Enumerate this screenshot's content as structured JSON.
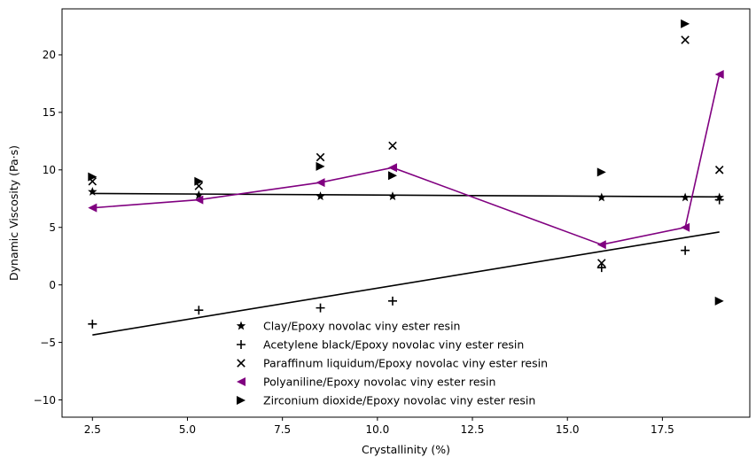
{
  "chart_data": {
    "type": "scatter",
    "title": "",
    "xlabel": "Crystallinity (%)",
    "ylabel": "Dynamic Viscosity (Pa·s)",
    "xlim": [
      1.7,
      19.8
    ],
    "ylim": [
      -11.5,
      24.0
    ],
    "xticks": [
      2.5,
      5.0,
      7.5,
      10.0,
      12.5,
      15.0,
      17.5
    ],
    "xtick_labels": [
      "2.5",
      "5.0",
      "7.5",
      "10.0",
      "12.5",
      "15.0",
      "17.5"
    ],
    "yticks": [
      -10,
      -5,
      0,
      5,
      10,
      15,
      20
    ],
    "ytick_labels": [
      "−10",
      "−5",
      "0",
      "5",
      "10",
      "15",
      "20"
    ],
    "grid": false,
    "legend_position": "bottom-center",
    "series": [
      {
        "name": "Clay/Epoxy novolac viny ester resin",
        "marker": "star",
        "color": "#000000",
        "x": [
          2.5,
          5.3,
          8.5,
          10.4,
          15.9,
          18.1,
          19.0
        ],
        "y": [
          8.1,
          7.8,
          7.7,
          7.7,
          7.6,
          7.6,
          7.6
        ]
      },
      {
        "name": "Acetylene black/Epoxy novolac viny ester resin",
        "marker": "plus",
        "color": "#000000",
        "x": [
          2.5,
          5.3,
          8.5,
          10.4,
          15.9,
          18.1,
          19.0
        ],
        "y": [
          -3.4,
          -2.2,
          -2.0,
          -1.4,
          1.5,
          3.0,
          7.4
        ]
      },
      {
        "name": "Paraffinum liquidum/Epoxy novolac viny ester resin",
        "marker": "x",
        "color": "#000000",
        "x": [
          2.5,
          5.3,
          8.5,
          10.4,
          15.9,
          18.1,
          19.0
        ],
        "y": [
          9.0,
          8.6,
          11.1,
          12.1,
          1.9,
          21.3,
          10.0
        ]
      },
      {
        "name": "Polyaniline/Epoxy novolac viny ester resin",
        "marker": "triangle-left",
        "color": "#800080",
        "line": true,
        "x": [
          2.5,
          5.3,
          8.5,
          10.4,
          15.9,
          18.1,
          19.0
        ],
        "y": [
          6.7,
          7.4,
          8.9,
          10.2,
          3.5,
          5.0,
          18.3
        ]
      },
      {
        "name": "Zirconium dioxide/Epoxy novolac viny ester resin",
        "marker": "triangle-right",
        "color": "#000000",
        "x": [
          2.5,
          5.3,
          8.5,
          10.4,
          15.9,
          18.1,
          19.0
        ],
        "y": [
          9.4,
          9.0,
          10.3,
          9.5,
          9.8,
          22.7,
          -1.4
        ]
      }
    ],
    "trend_lines": [
      {
        "x": [
          2.5,
          19.0
        ],
        "y": [
          7.95,
          7.65
        ],
        "color": "#000000"
      },
      {
        "x": [
          2.5,
          19.0
        ],
        "y": [
          -4.35,
          4.6
        ],
        "color": "#000000"
      }
    ]
  }
}
